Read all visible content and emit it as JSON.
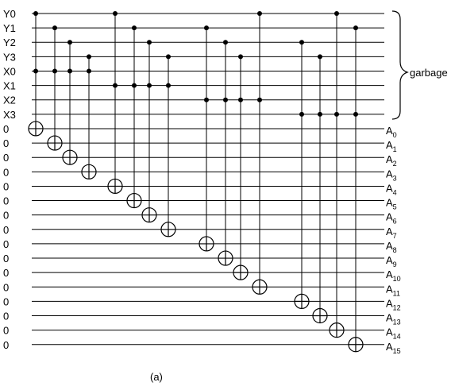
{
  "input_labels": [
    "Y0",
    "Y1",
    "Y2",
    "Y3",
    "X0",
    "X1",
    "X2",
    "X3",
    "0",
    "0",
    "0",
    "0",
    "0",
    "0",
    "0",
    "0",
    "0",
    "0",
    "0",
    "0",
    "0",
    "0",
    "0",
    "0"
  ],
  "output_labels": [
    {
      "main": "A",
      "sub": "0"
    },
    {
      "main": "A",
      "sub": "1"
    },
    {
      "main": "A",
      "sub": "2"
    },
    {
      "main": "A",
      "sub": "3"
    },
    {
      "main": "A",
      "sub": "4"
    },
    {
      "main": "A",
      "sub": "5"
    },
    {
      "main": "A",
      "sub": "6"
    },
    {
      "main": "A",
      "sub": "7"
    },
    {
      "main": "A",
      "sub": "8"
    },
    {
      "main": "A",
      "sub": "9"
    },
    {
      "main": "A",
      "sub": "10"
    },
    {
      "main": "A",
      "sub": "11"
    },
    {
      "main": "A",
      "sub": "12"
    },
    {
      "main": "A",
      "sub": "13"
    },
    {
      "main": "A",
      "sub": "14"
    },
    {
      "main": "A",
      "sub": "15"
    }
  ],
  "garbage_label": "garbage",
  "caption": "(a)",
  "gates": [
    {
      "y": 0,
      "x": 0,
      "target": 0
    },
    {
      "y": 1,
      "x": 0,
      "target": 1
    },
    {
      "y": 2,
      "x": 0,
      "target": 2
    },
    {
      "y": 3,
      "x": 0,
      "target": 3
    },
    {
      "y": 0,
      "x": 1,
      "target": 4
    },
    {
      "y": 1,
      "x": 1,
      "target": 5
    },
    {
      "y": 2,
      "x": 1,
      "target": 6
    },
    {
      "y": 3,
      "x": 1,
      "target": 7
    },
    {
      "y": 1,
      "x": 2,
      "target": 8
    },
    {
      "y": 2,
      "x": 2,
      "target": 9
    },
    {
      "y": 3,
      "x": 2,
      "target": 10
    },
    {
      "y": 0,
      "x": 2,
      "target": 11
    },
    {
      "y": 2,
      "x": 3,
      "target": 12
    },
    {
      "y": 3,
      "x": 3,
      "target": 13
    },
    {
      "y": 0,
      "x": 3,
      "target": 14
    },
    {
      "y": 1,
      "x": 3,
      "target": 15
    }
  ]
}
